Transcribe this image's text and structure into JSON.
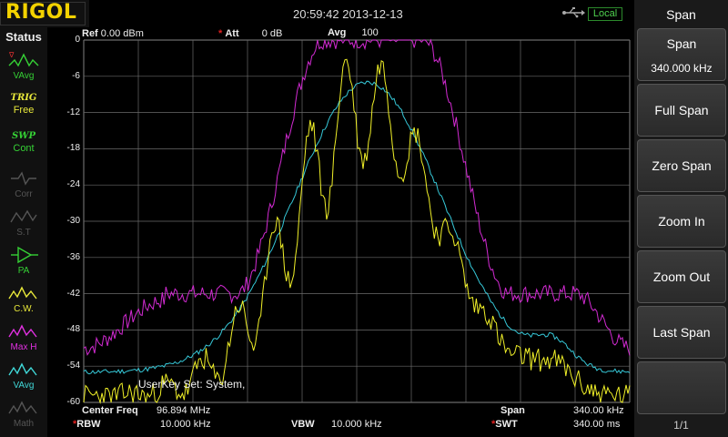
{
  "brand": "RIGOL",
  "datetime": "20:59:42 2013-12-13",
  "local_badge": "Local",
  "status": {
    "title": "Status",
    "items": [
      {
        "name": "vavg",
        "label": "VAvg",
        "color": "#35d035"
      },
      {
        "name": "trig",
        "top": "TRIG",
        "bottom": "Free",
        "color": "#e8e83a"
      },
      {
        "name": "swp",
        "top": "SWP",
        "bottom": "Cont",
        "color": "#35d035"
      },
      {
        "name": "corr",
        "label": "Corr",
        "color": "#555555"
      },
      {
        "name": "st",
        "label": "S.T",
        "color": "#555555"
      },
      {
        "name": "pa",
        "label": "PA",
        "color": "#35d035"
      },
      {
        "name": "cw",
        "label": "C.W.",
        "color": "#e8e83a"
      },
      {
        "name": "maxh",
        "label": "Max H",
        "color": "#e030e0"
      },
      {
        "name": "vavg2",
        "label": "VAvg",
        "color": "#40d8d8"
      },
      {
        "name": "math",
        "label": "Math",
        "color": "#555555"
      }
    ]
  },
  "header": {
    "ref_label": "Ref",
    "ref_value": "0.00 dBm",
    "att_label": "Att",
    "att_value": "0 dB",
    "avg_label": "Avg",
    "avg_value": "100"
  },
  "y_ticks": [
    "0",
    "-6",
    "-12",
    "-18",
    "-24",
    "-30",
    "-36",
    "-42",
    "-48",
    "-54",
    "-60"
  ],
  "userkey_text": "UserKey Set:    System,",
  "footer": {
    "center_label": "Center Freq",
    "center_value": "96.894 MHz",
    "span_label": "Span",
    "span_value": "340.00 kHz",
    "rbw_label": "RBW",
    "rbw_value": "10.000 kHz",
    "vbw_label": "VBW",
    "vbw_value": "10.000 kHz",
    "swt_label": "SWT",
    "swt_value": "340.00 ms"
  },
  "menu": {
    "title": "Span",
    "buttons": [
      {
        "label": "Span",
        "value": "340.000 kHz"
      },
      {
        "label": "Full Span"
      },
      {
        "label": "Zero Span"
      },
      {
        "label": "Zoom In"
      },
      {
        "label": "Zoom Out"
      },
      {
        "label": "Last Span"
      },
      {
        "label": ""
      }
    ],
    "page": "1/1"
  },
  "colors": {
    "maxhold": "#d22ad2",
    "clearwrite": "#f0f028",
    "average": "#36c8d8",
    "grid": "#6a6a6a"
  }
}
